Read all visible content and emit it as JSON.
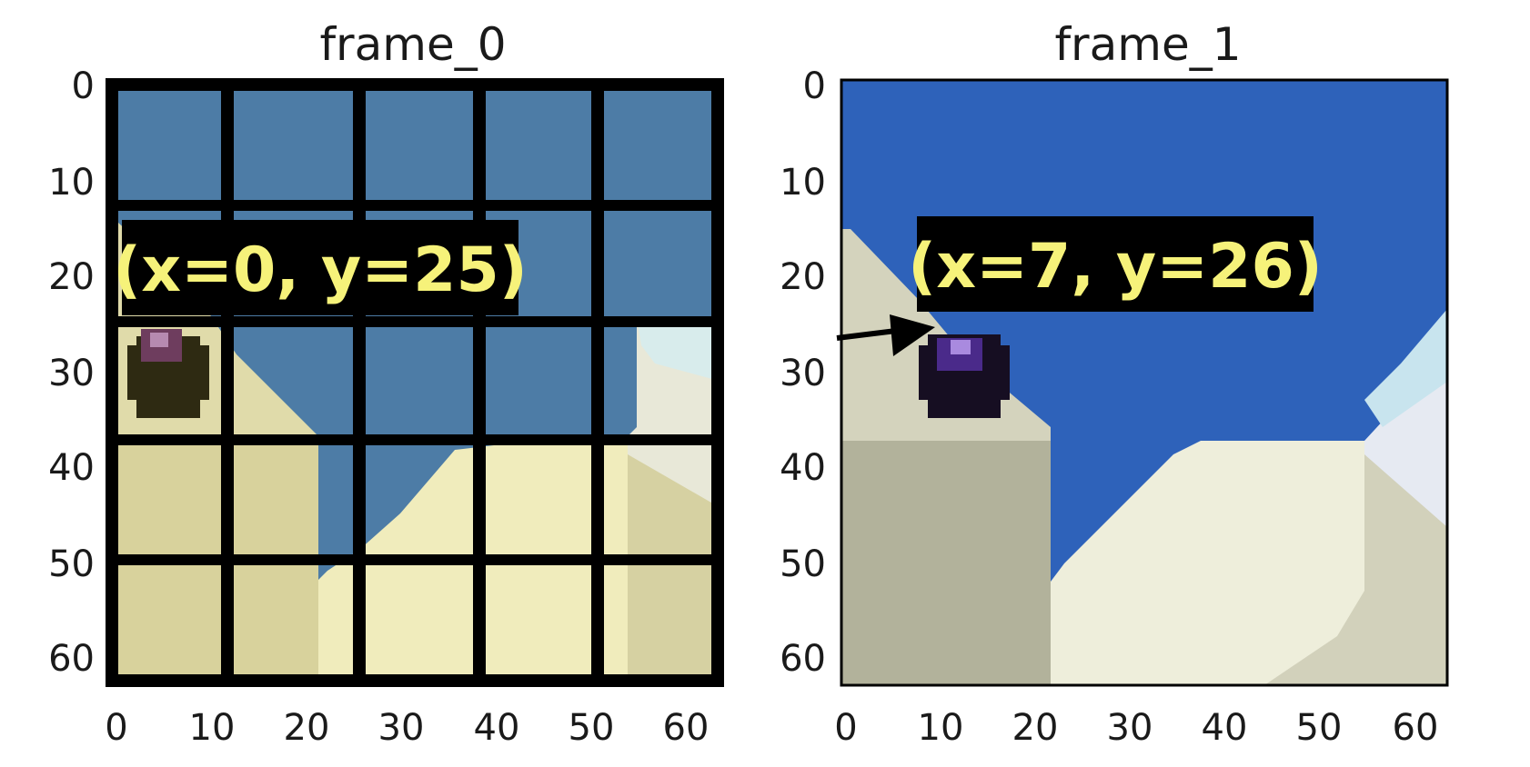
{
  "frames": [
    {
      "title": "frame_0",
      "annotation": "(x=0, y=25)",
      "grid_overlay": true,
      "colors": {
        "sky": "#4d7ca6",
        "sand_light": "#f0ecbc",
        "sand_dark": "#d8d29c",
        "grid": "#000000"
      }
    },
    {
      "title": "frame_1",
      "annotation": "(x=7, y=26)",
      "grid_overlay": false,
      "colors": {
        "sky": "#2e62ba",
        "sand_light": "#eeeedb",
        "sand_dark": "#b2b29b",
        "grid": "#000000"
      }
    }
  ],
  "axis": {
    "x_ticks": [
      "0",
      "10",
      "20",
      "30",
      "40",
      "50",
      "60"
    ],
    "y_ticks": [
      "0",
      "10",
      "20",
      "30",
      "40",
      "50",
      "60"
    ]
  }
}
